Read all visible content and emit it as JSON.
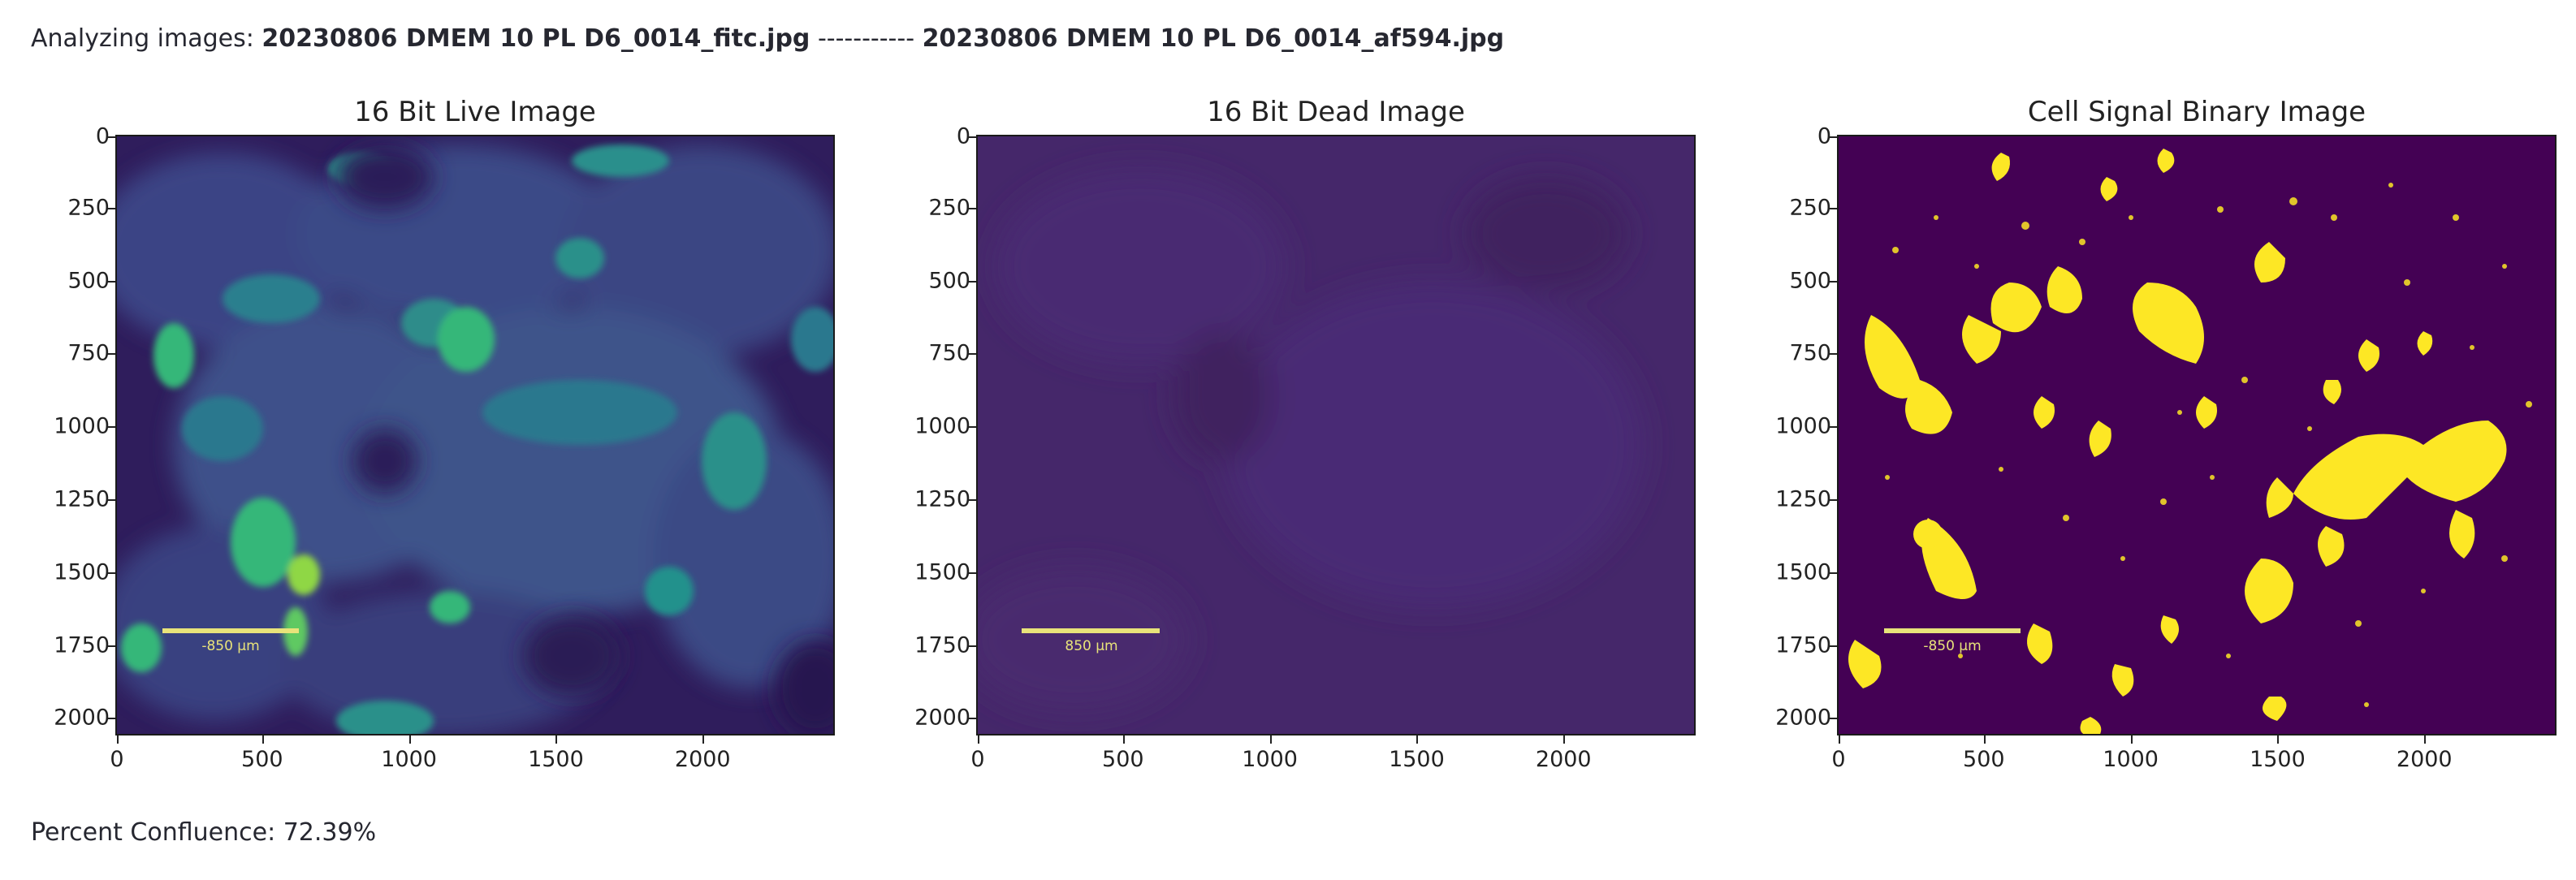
{
  "header": {
    "prefix": "Analyzing images: ",
    "file_a": "20230806 DMEM 10 PL D6_0014_fitc.jpg",
    "separator": " ----------- ",
    "file_b": "20230806 DMEM 10 PL D6_0014_af594.jpg"
  },
  "footer": {
    "confluence": "Percent Confluence: 72.39%"
  },
  "panels": [
    {
      "title": "16 Bit Live Image",
      "colors": {
        "bg": "#3b2f6e",
        "feature": "#31688e",
        "bright": "#35b779",
        "hot": "#8fd744"
      }
    },
    {
      "title": "16 Bit Dead Image",
      "colors": {
        "bg": "#432665",
        "feature": "#46286c"
      }
    },
    {
      "title": "Cell Signal Binary Image",
      "colors": {
        "bg": "#440154",
        "feature": "#fde725"
      }
    }
  ],
  "axes": {
    "yticks": [
      "0",
      "250",
      "500",
      "750",
      "1000",
      "1250",
      "1500",
      "1750",
      "2000"
    ],
    "xticks": [
      "0",
      "500",
      "1000",
      "1500",
      "2000"
    ]
  },
  "scalebar_label": "850 μm",
  "scalebar_label_alt": "-850 μm"
}
